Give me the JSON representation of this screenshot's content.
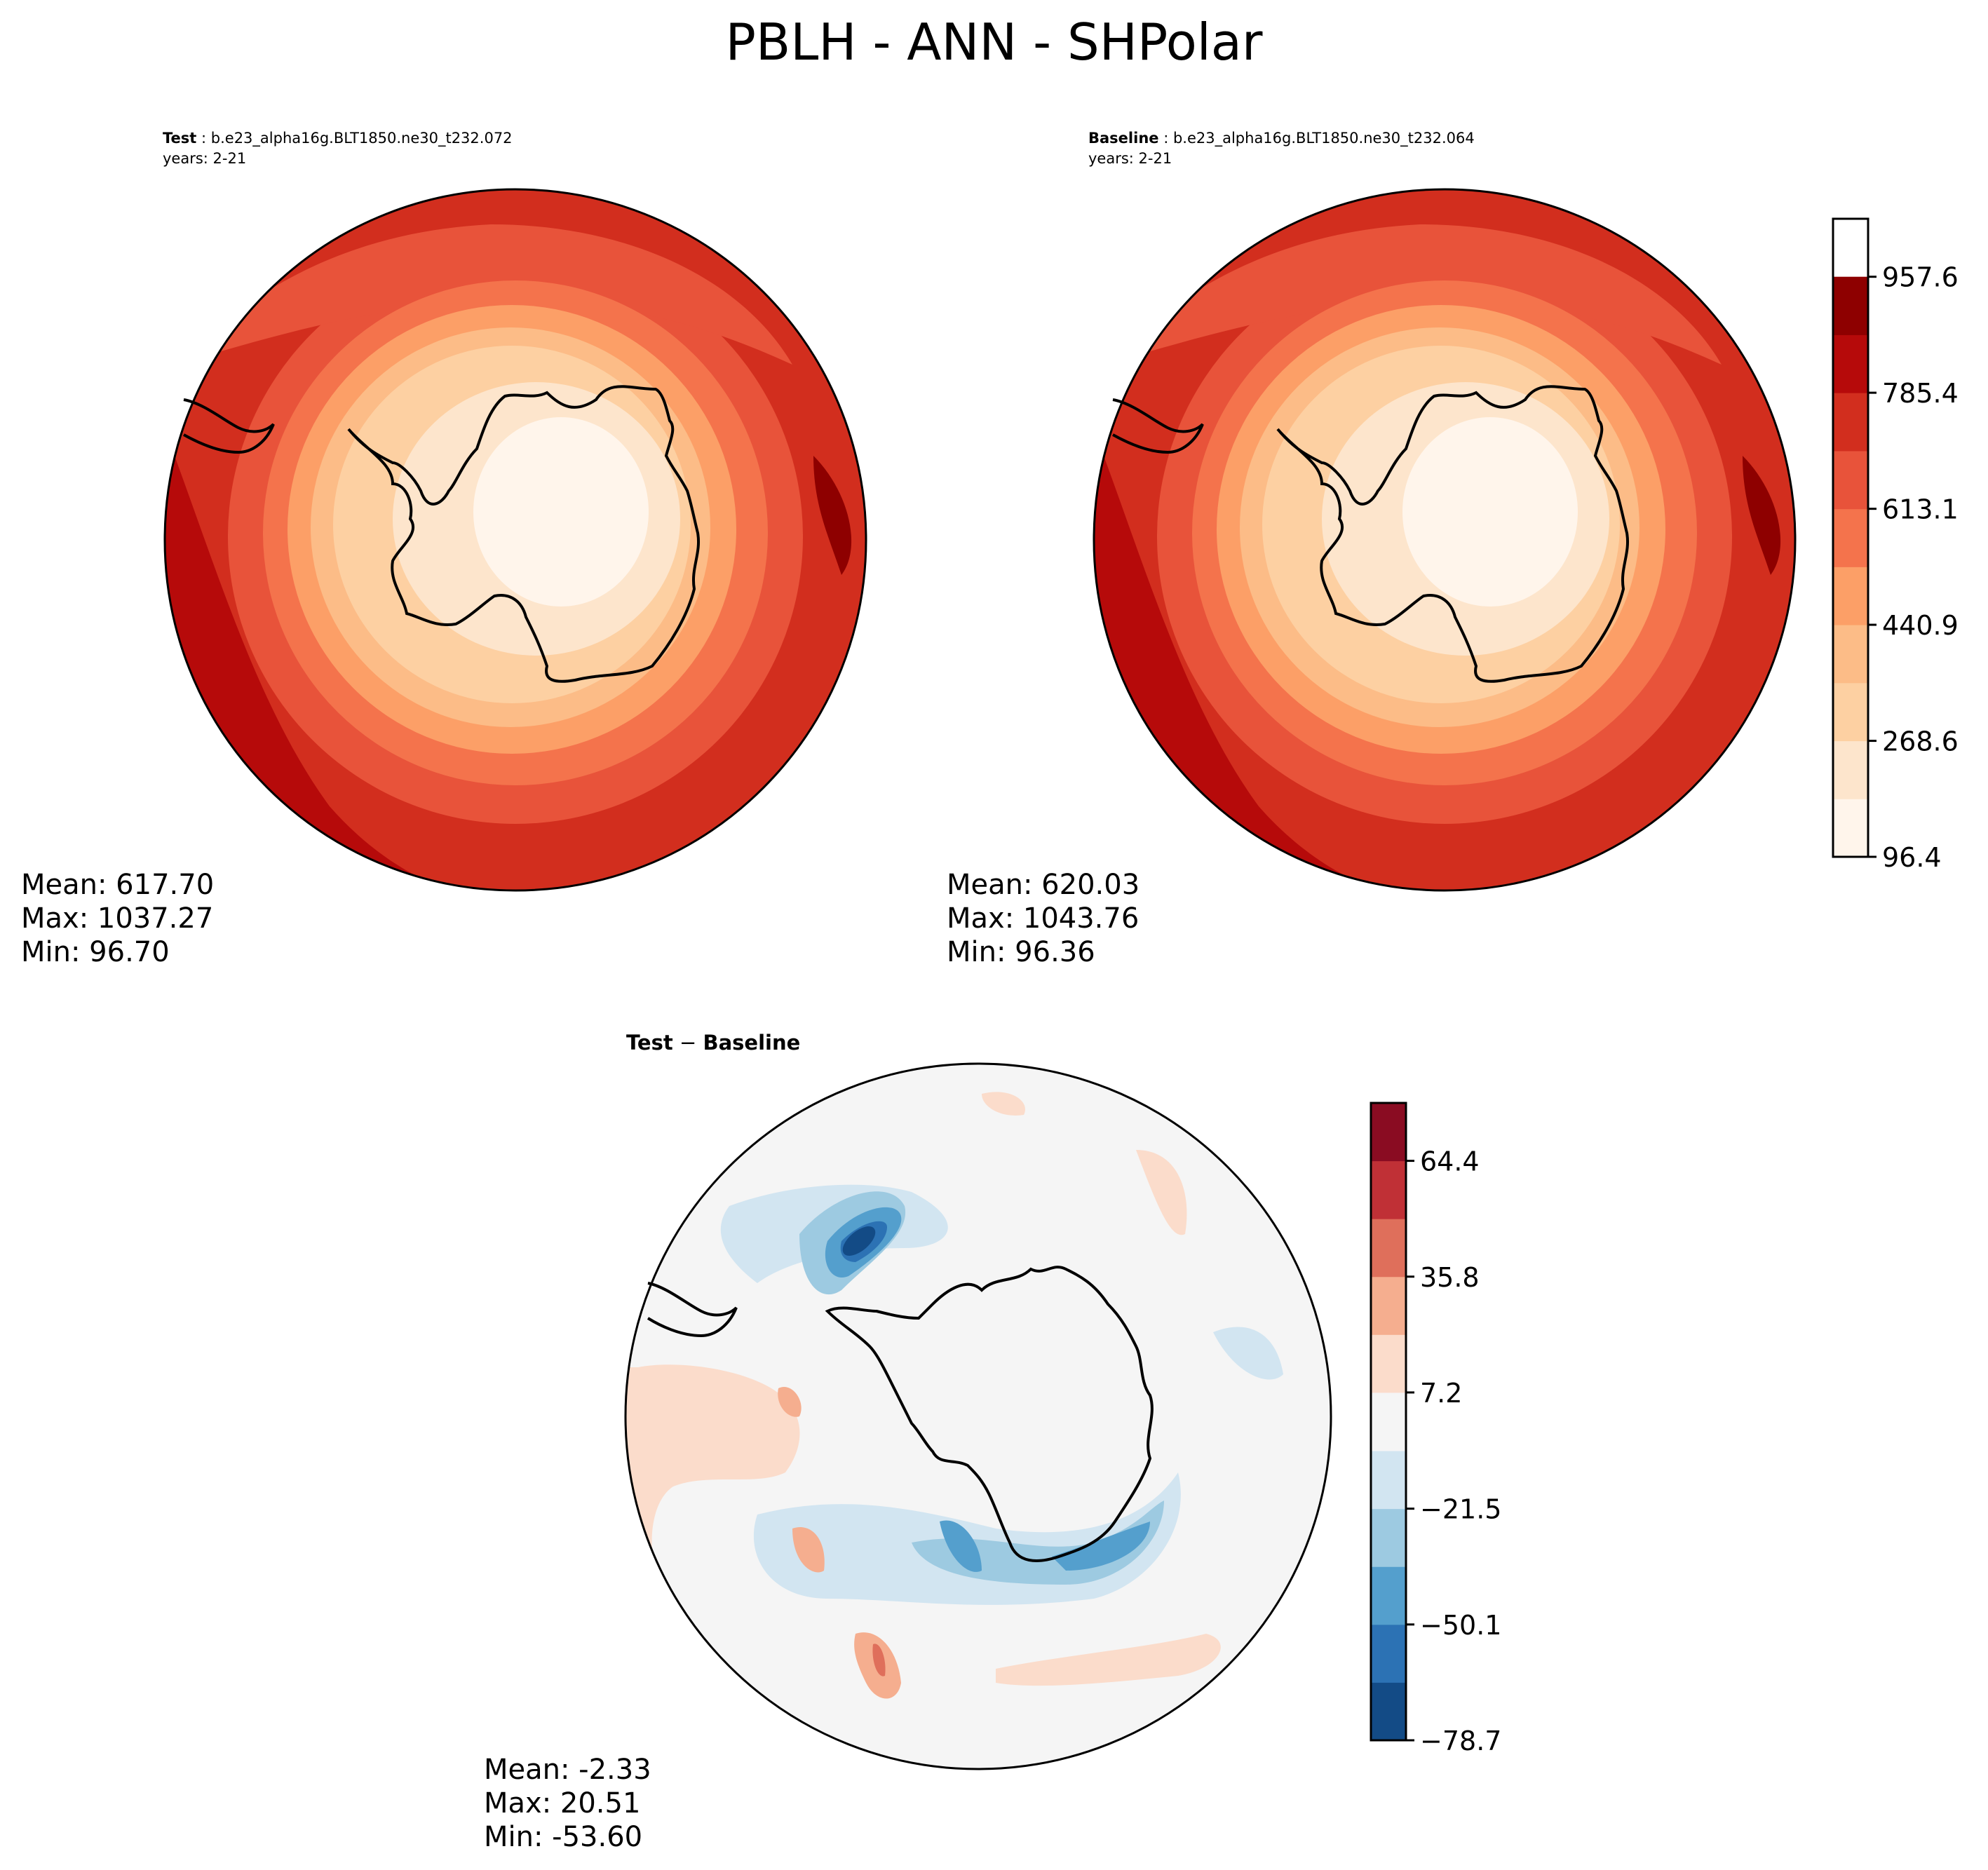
{
  "figure": {
    "title": "PBLH - ANN - SHPolar"
  },
  "panels": {
    "test": {
      "label": "Test",
      "case": "b.e23_alpha16g.BLT1850.ne30_t232.072",
      "years": "years: 2-21",
      "mean": "Mean: 617.70",
      "max": "Max: 1037.27",
      "min": "Min: 96.70"
    },
    "baseline": {
      "label": "Baseline",
      "case": "b.e23_alpha16g.BLT1850.ne30_t232.064",
      "years": "years: 2-21",
      "mean": "Mean: 620.03",
      "max": "Max: 1043.76",
      "min": "Min: 96.36"
    },
    "diff": {
      "title_test": "Test",
      "title_minus": " − ",
      "title_baseline": "Baseline",
      "mean": "Mean: -2.33",
      "max": "Max: 20.51",
      "min": "Min: -53.60"
    }
  },
  "chart_data": [
    {
      "type": "heatmap",
      "projection": "south polar stereographic",
      "panel": "Test",
      "stats": {
        "mean": 617.7,
        "max": 1037.27,
        "min": 96.7
      },
      "color_levels": [
        96.4,
        182.5,
        268.6,
        354.8,
        440.9,
        527.0,
        613.1,
        699.2,
        785.4,
        871.5,
        957.6,
        1043.7
      ],
      "colormap": "OrRd-like (Reds)"
    },
    {
      "type": "heatmap",
      "projection": "south polar stereographic",
      "panel": "Baseline",
      "stats": {
        "mean": 620.03,
        "max": 1043.76,
        "min": 96.36
      },
      "color_levels": [
        96.4,
        182.5,
        268.6,
        354.8,
        440.9,
        527.0,
        613.1,
        699.2,
        785.4,
        871.5,
        957.6,
        1043.7
      ],
      "colorbar_ticks": [
        "96.4",
        "268.6",
        "440.9",
        "613.1",
        "785.4",
        "957.6"
      ],
      "colorbar_colors": [
        "#fff5eb",
        "#fde5cc",
        "#fdd0a2",
        "#fcbc87",
        "#fc9f67",
        "#f4734c",
        "#e8533a",
        "#d22e1e",
        "#b60a0a",
        "#8e0000"
      ]
    },
    {
      "type": "heatmap",
      "projection": "south polar stereographic",
      "panel": "Test − Baseline",
      "stats": {
        "mean": -2.33,
        "max": 20.51,
        "min": -53.6
      },
      "color_levels": [
        -78.7,
        -64.4,
        -50.1,
        -35.8,
        -21.5,
        -7.2,
        7.2,
        21.5,
        35.8,
        50.1,
        64.4,
        78.7
      ],
      "colorbar_ticks": [
        "−78.7",
        "−50.1",
        "−21.5",
        "7.2",
        "35.8",
        "64.4"
      ],
      "colorbar_colors": [
        "#134b86",
        "#2c72b4",
        "#549fcd",
        "#9dcae1",
        "#d2e5f1",
        "#f5f5f5",
        "#fbdccb",
        "#f5ae8f",
        "#df6f5b",
        "#c03036",
        "#8a0c22"
      ]
    }
  ]
}
